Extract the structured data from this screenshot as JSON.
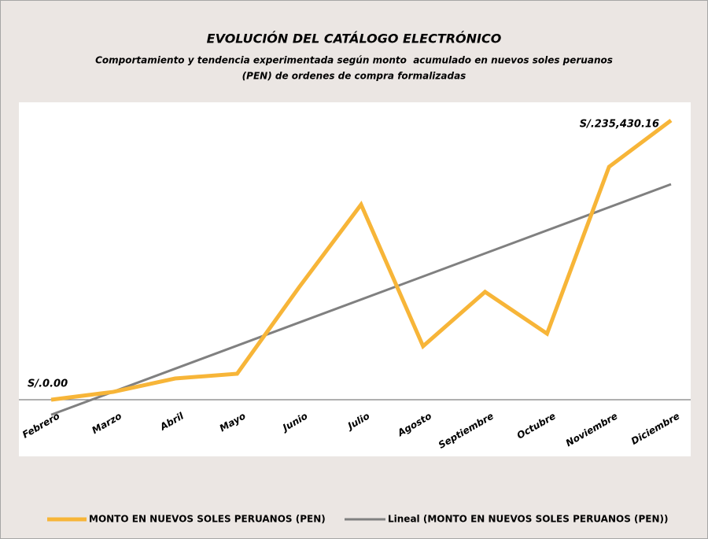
{
  "chart_data": {
    "type": "line",
    "title": "EVOLUCIÓN DEL CATÁLOGO ELECTRÓNICO",
    "subtitle": [
      "Comportamiento y tendencia experimentada según monto  acumulado en nuevos soles peruanos",
      "(PEN) de ordenes de compra formalizadas"
    ],
    "categories": [
      "Febrero",
      "Marzo",
      "Abril",
      "Mayo",
      "Junio",
      "Julio",
      "Agosto",
      "Septiembre",
      "Octubre",
      "Noviembre",
      "Diciembre"
    ],
    "series": [
      {
        "name": "MONTO EN NUEVOS SOLES PERUANOS (PEN)",
        "color": "#f7b538",
        "values": [
          0,
          6600,
          17900,
          21900,
          94800,
          164500,
          45100,
          90900,
          55700,
          196300,
          235430.16
        ],
        "value_labels": [
          "S/.0.00",
          null,
          null,
          null,
          null,
          null,
          null,
          null,
          null,
          null,
          "S/.235,430.16"
        ]
      }
    ],
    "trendline": {
      "name": "Lineal (MONTO EN NUEVOS SOLES PERUANOS (PEN))",
      "color": "#808080"
    }
  }
}
